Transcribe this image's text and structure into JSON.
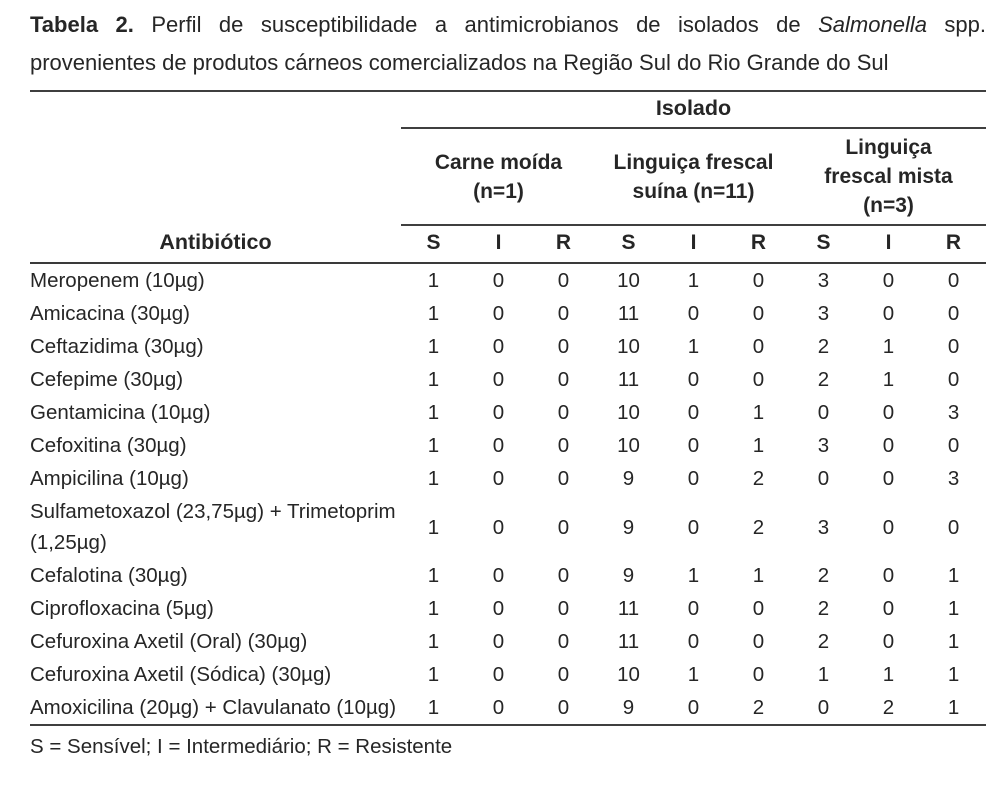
{
  "caption": {
    "label": "Tabela 2.",
    "text_before_italic": " Perfil de susceptibilidade a antimicrobianos de isolados de ",
    "italic_text": "Salmonella",
    "text_after_italic": " spp. provenientes de produtos cárneos comercializados na Região Sul do Rio Grande do Sul"
  },
  "table": {
    "super_header": "Isolado",
    "antibiotic_header": "Antibiótico",
    "groups": [
      {
        "label": "Carne moída (n=1)",
        "lines": [
          "Carne moída",
          "(n=1)"
        ],
        "columns": [
          "S",
          "I",
          "R"
        ]
      },
      {
        "label": "Linguiça frescal suína (n=11)",
        "lines": [
          "Linguiça frescal",
          "suína (n=11)"
        ],
        "columns": [
          "S",
          "I",
          "R"
        ]
      },
      {
        "label": "Linguiça frescal mista (n=3)",
        "lines": [
          "Linguiça",
          "frescal mista",
          "(n=3)"
        ],
        "columns": [
          "S",
          "I",
          "R"
        ]
      }
    ],
    "rows": [
      {
        "name": "Meropenem (10µg)",
        "values": [
          "1",
          "0",
          "0",
          "10",
          "1",
          "0",
          "3",
          "0",
          "0"
        ]
      },
      {
        "name": "Amicacina (30µg)",
        "values": [
          "1",
          "0",
          "0",
          "11",
          "0",
          "0",
          "3",
          "0",
          "0"
        ]
      },
      {
        "name": "Ceftazidima (30µg)",
        "values": [
          "1",
          "0",
          "0",
          "10",
          "1",
          "0",
          "2",
          "1",
          "0"
        ]
      },
      {
        "name": "Cefepime (30µg)",
        "values": [
          "1",
          "0",
          "0",
          "11",
          "0",
          "0",
          "2",
          "1",
          "0"
        ]
      },
      {
        "name": "Gentamicina (10µg)",
        "values": [
          "1",
          "0",
          "0",
          "10",
          "0",
          "1",
          "0",
          "0",
          "3"
        ]
      },
      {
        "name": "Cefoxitina (30µg)",
        "values": [
          "1",
          "0",
          "0",
          "10",
          "0",
          "1",
          "3",
          "0",
          "0"
        ]
      },
      {
        "name": "Ampicilina (10µg)",
        "values": [
          "1",
          "0",
          "0",
          "9",
          "0",
          "2",
          "0",
          "0",
          "3"
        ]
      },
      {
        "name": "Sulfametoxazol (23,75µg) + Trimetoprim (1,25µg)",
        "values": [
          "1",
          "0",
          "0",
          "9",
          "0",
          "2",
          "3",
          "0",
          "0"
        ]
      },
      {
        "name": "Cefalotina (30µg)",
        "values": [
          "1",
          "0",
          "0",
          "9",
          "1",
          "1",
          "2",
          "0",
          "1"
        ]
      },
      {
        "name": "Ciprofloxacina (5µg)",
        "values": [
          "1",
          "0",
          "0",
          "11",
          "0",
          "0",
          "2",
          "0",
          "1"
        ]
      },
      {
        "name": "Cefuroxina Axetil (Oral) (30µg)",
        "values": [
          "1",
          "0",
          "0",
          "11",
          "0",
          "0",
          "2",
          "0",
          "1"
        ]
      },
      {
        "name": "Cefuroxina Axetil (Sódica) (30µg)",
        "values": [
          "1",
          "0",
          "0",
          "10",
          "1",
          "0",
          "1",
          "1",
          "1"
        ]
      },
      {
        "name": "Amoxicilina (20µg) + Clavulanato (10µg)",
        "values": [
          "1",
          "0",
          "0",
          "9",
          "0",
          "2",
          "0",
          "2",
          "1"
        ]
      }
    ],
    "footnote": "S = Sensível; I = Intermediário; R = Resistente"
  },
  "colors": {
    "background": "#ffffff",
    "text": "#262626",
    "rule": "#3f3f3f"
  }
}
